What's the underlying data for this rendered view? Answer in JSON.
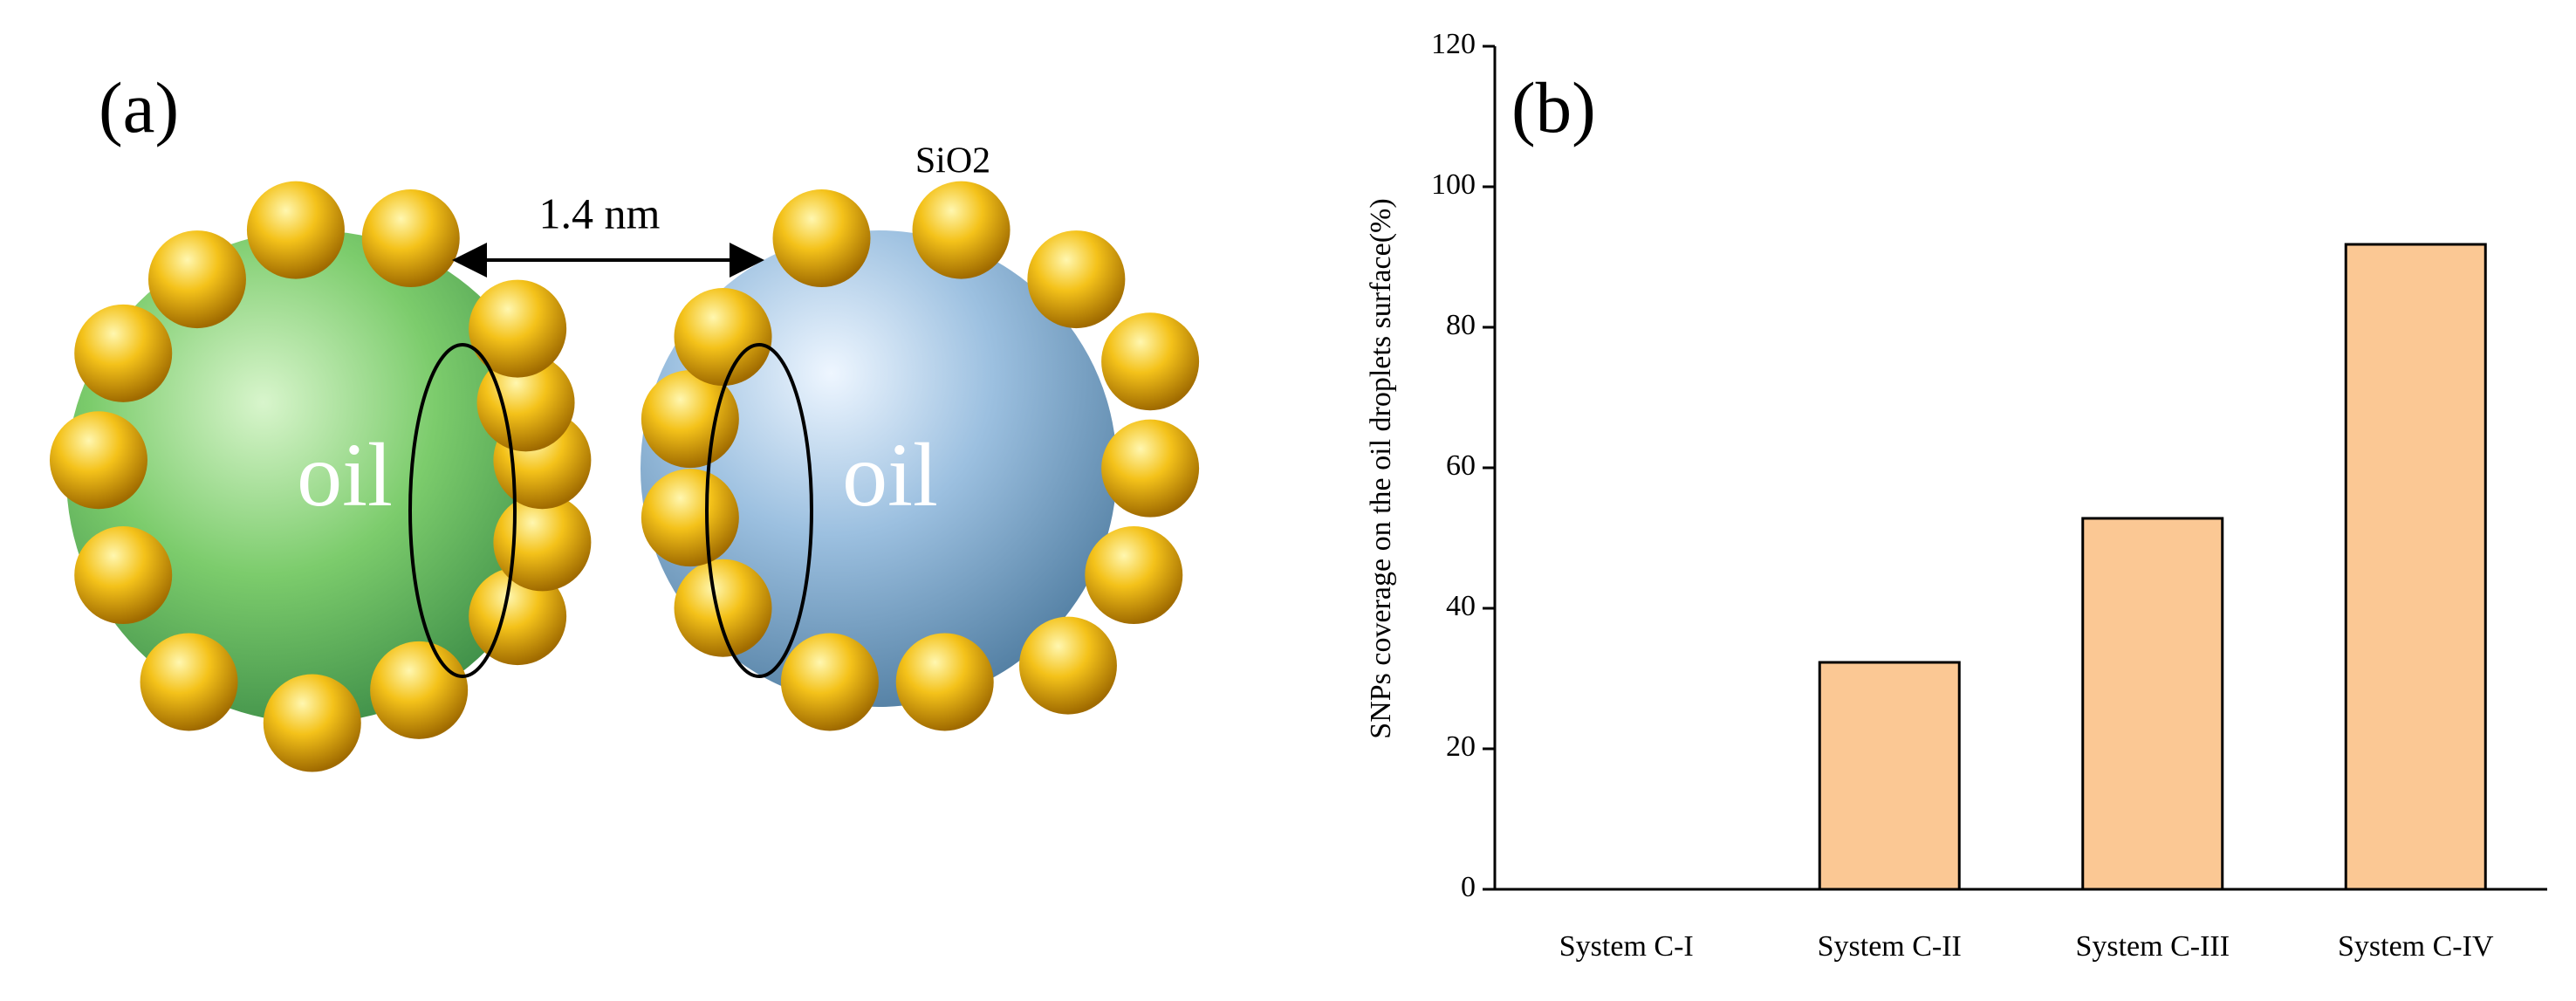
{
  "diagram": {
    "panel_label": "(a)",
    "left_droplet": "oil",
    "right_droplet": "oil",
    "distance": "1.4 nm",
    "particle_label": "SiO2"
  },
  "chart_data": {
    "type": "bar",
    "panel_label": "(b)",
    "y_label": "SNPs coverage on the oil droplets surface(%)",
    "categories": [
      "System C-I",
      "System C-II",
      "System C-III",
      "System C-IV"
    ],
    "values": [
      0,
      32.3,
      52.8,
      91.8
    ],
    "color": "#fbc894",
    "ylim": [
      0,
      120
    ],
    "yticks": [
      0,
      20,
      40,
      60,
      80,
      100,
      120
    ],
    "grid": false
  }
}
